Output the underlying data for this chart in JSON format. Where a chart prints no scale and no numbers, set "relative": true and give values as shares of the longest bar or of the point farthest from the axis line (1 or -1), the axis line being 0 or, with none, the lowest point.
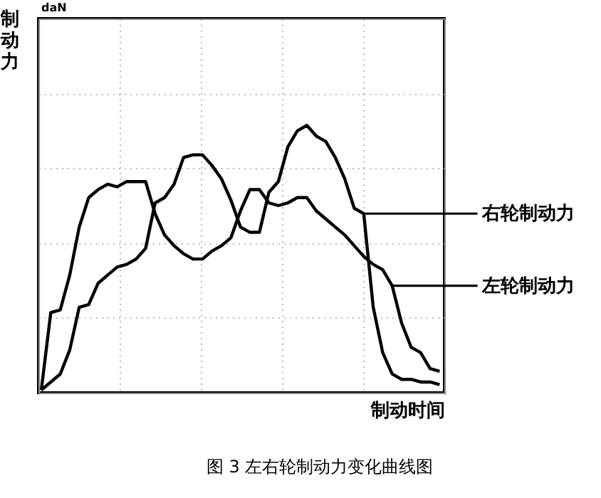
{
  "chart_data": {
    "type": "line",
    "relative": true,
    "title": "图 3  左右轮制动力变化曲线图",
    "xlabel": "制动时间",
    "ylabel": "制动力",
    "annotations": [
      "daN"
    ],
    "grid": true,
    "legend": "right",
    "marker": "none",
    "line_style": "solid",
    "categories": [
      null,
      null,
      null,
      null,
      null,
      null,
      null,
      null,
      null,
      null,
      null,
      null,
      null,
      null,
      null,
      null,
      null,
      null,
      null,
      null,
      null,
      null,
      null,
      null,
      null,
      null,
      null,
      null,
      null,
      null,
      null,
      null,
      null,
      null,
      null,
      null,
      null,
      null,
      null,
      null,
      null,
      null,
      null
    ],
    "series": [
      {
        "name": "右轮制动力",
        "color": "#000000",
        "values": [
          0.01,
          0.04,
          0.07,
          0.16,
          0.32,
          0.33,
          0.41,
          0.44,
          0.47,
          0.48,
          0.5,
          0.54,
          0.71,
          0.73,
          0.78,
          0.88,
          0.89,
          0.89,
          0.85,
          0.8,
          0.72,
          0.62,
          0.6,
          0.6,
          0.75,
          0.79,
          0.92,
          0.98,
          1.0,
          0.96,
          0.94,
          0.88,
          0.8,
          0.69,
          0.67,
          0.32,
          0.15,
          0.07,
          0.05,
          0.05,
          0.04,
          0.04,
          0.03
        ]
      },
      {
        "name": "左轮制动力",
        "color": "#000000",
        "values": [
          0.01,
          0.3,
          0.31,
          0.44,
          0.62,
          0.73,
          0.76,
          0.78,
          0.77,
          0.79,
          0.79,
          0.79,
          0.67,
          0.59,
          0.55,
          0.52,
          0.5,
          0.5,
          0.53,
          0.55,
          0.58,
          0.68,
          0.76,
          0.76,
          0.71,
          0.7,
          0.71,
          0.73,
          0.73,
          0.68,
          0.65,
          0.62,
          0.59,
          0.55,
          0.51,
          0.48,
          0.46,
          0.4,
          0.26,
          0.17,
          0.15,
          0.09,
          0.08
        ]
      }
    ]
  }
}
